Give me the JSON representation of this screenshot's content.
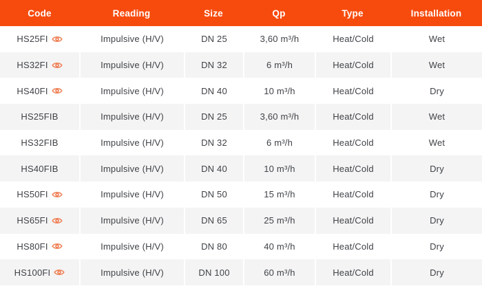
{
  "colors": {
    "header_bg": "#f74b0e",
    "eye_icon": "#ef8157",
    "body_text": "#3f4247",
    "stripe_row_bg": "#f4f4f4",
    "white_row_bg": "#ffffff",
    "header_text": "#ffffff"
  },
  "icons": {
    "eye": "eye-icon"
  },
  "table": {
    "columns": [
      {
        "key": "code",
        "label": "Code"
      },
      {
        "key": "reading",
        "label": "Reading"
      },
      {
        "key": "size",
        "label": "Size"
      },
      {
        "key": "qp",
        "label": "Qp"
      },
      {
        "key": "type",
        "label": "Type"
      },
      {
        "key": "installation",
        "label": "Installation"
      }
    ],
    "rows": [
      {
        "code": "HS25FI",
        "has_eye": true,
        "reading": "Impulsive (H/V)",
        "size": "DN 25",
        "qp": "3,60 m³/h",
        "type": "Heat/Cold",
        "installation": "Wet"
      },
      {
        "code": "HS32FI",
        "has_eye": true,
        "reading": "Impulsive (H/V)",
        "size": "DN 32",
        "qp": "6 m³/h",
        "type": "Heat/Cold",
        "installation": "Wet"
      },
      {
        "code": "HS40FI",
        "has_eye": true,
        "reading": "Impulsive (H/V)",
        "size": "DN 40",
        "qp": "10 m³/h",
        "type": "Heat/Cold",
        "installation": "Dry"
      },
      {
        "code": "HS25FIB",
        "has_eye": false,
        "reading": "Impulsive (H/V)",
        "size": "DN 25",
        "qp": "3,60 m³/h",
        "type": "Heat/Cold",
        "installation": "Wet"
      },
      {
        "code": "HS32FIB",
        "has_eye": false,
        "reading": "Impulsive (H/V)",
        "size": "DN 32",
        "qp": "6 m³/h",
        "type": "Heat/Cold",
        "installation": "Wet"
      },
      {
        "code": "HS40FIB",
        "has_eye": false,
        "reading": "Impulsive (H/V)",
        "size": "DN 40",
        "qp": "10 m³/h",
        "type": "Heat/Cold",
        "installation": "Dry"
      },
      {
        "code": "HS50FI",
        "has_eye": true,
        "reading": "Impulsive (H/V)",
        "size": "DN 50",
        "qp": "15 m³/h",
        "type": "Heat/Cold",
        "installation": "Dry"
      },
      {
        "code": "HS65FI",
        "has_eye": true,
        "reading": "Impulsive (H/V)",
        "size": "DN 65",
        "qp": "25 m³/h",
        "type": "Heat/Cold",
        "installation": "Dry"
      },
      {
        "code": "HS80FI",
        "has_eye": true,
        "reading": "Impulsive (H/V)",
        "size": "DN 80",
        "qp": "40 m³/h",
        "type": "Heat/Cold",
        "installation": "Dry"
      },
      {
        "code": "HS100FI",
        "has_eye": true,
        "reading": "Impulsive (H/V)",
        "size": "DN 100",
        "qp": "60 m³/h",
        "type": "Heat/Cold",
        "installation": "Dry"
      }
    ]
  }
}
